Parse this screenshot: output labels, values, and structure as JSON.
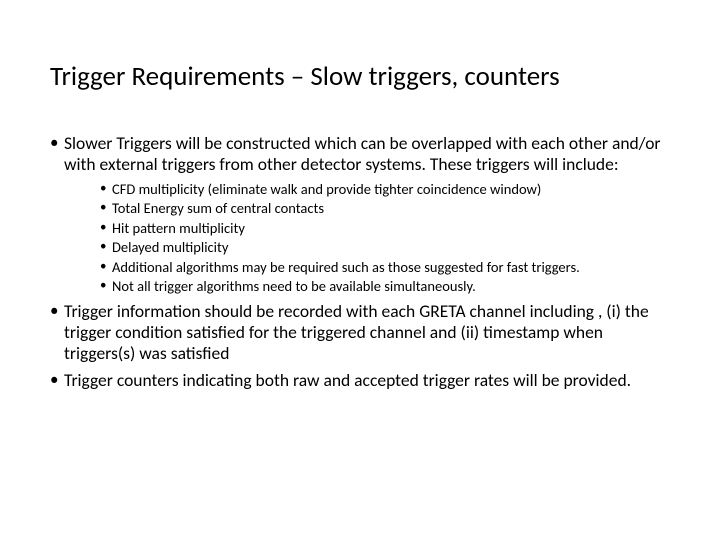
{
  "title": "Trigger Requirements – Slow triggers, counters",
  "colors": {
    "background": "#ffffff",
    "text": "#000000"
  },
  "typography": {
    "title_fontsize_pt": 27,
    "body_fontsize_pt": 17.5,
    "sub_fontsize_pt": 14.5,
    "font_family": "Calibri"
  },
  "bullets": {
    "b0": "Slower Triggers will be constructed which can be overlapped with each other and/or with external triggers from other detector systems. These triggers will include:",
    "b0_sub": {
      "s0": "CFD multiplicity (eliminate walk and provide tighter coincidence window)",
      "s1": "Total Energy sum of central contacts",
      "s2": "Hit pattern multiplicity",
      "s3": "Delayed multiplicity",
      "s4": "Additional algorithms may be required such as those suggested for fast triggers.",
      "s5": "Not all trigger algorithms need to be available simultaneously."
    },
    "b1": "Trigger information should be recorded with each GRETA channel including , (i)  the trigger condition satisfied for the triggered channel and (ii) timestamp when triggers(s) was satisfied",
    "b2": "Trigger counters indicating both raw and accepted trigger rates will be provided."
  }
}
